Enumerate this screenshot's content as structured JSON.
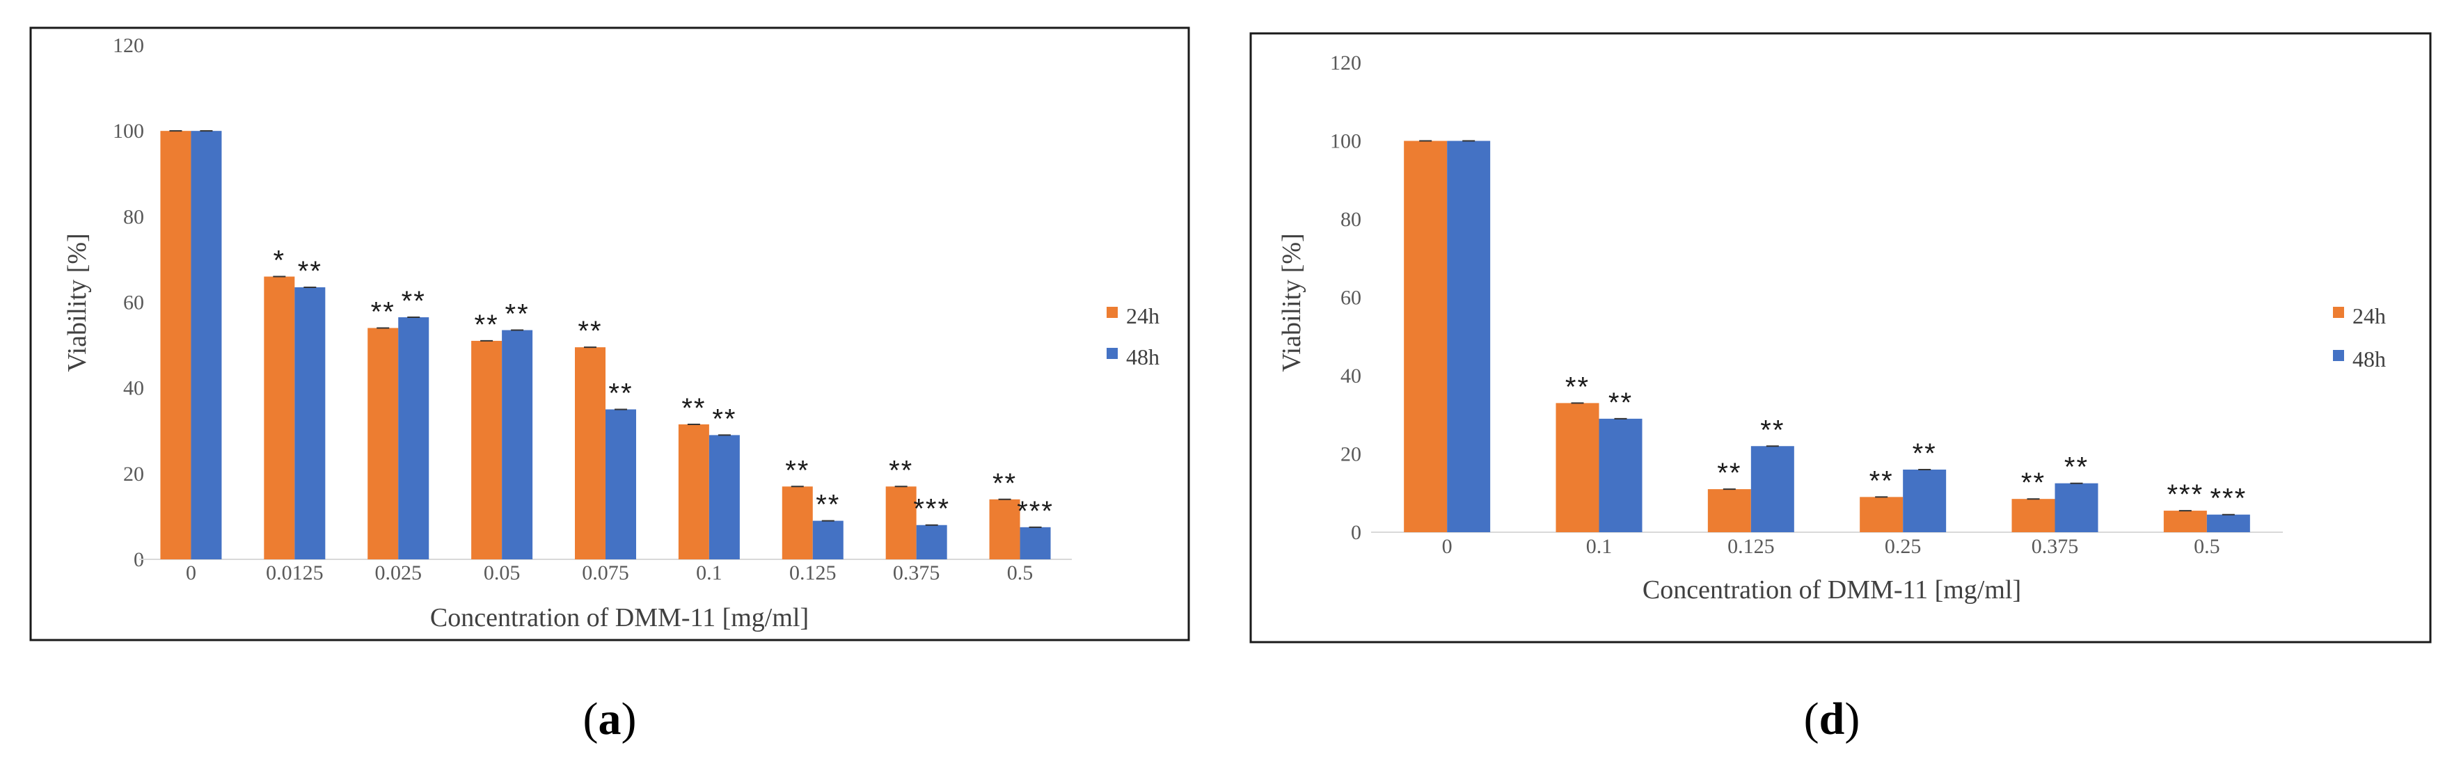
{
  "colors": {
    "series_24h": "#ED7D31",
    "series_48h": "#4472C4"
  },
  "chart_data": [
    {
      "id": "a",
      "type": "bar",
      "panel_label": {
        "open": "(",
        "letter": "a",
        "close": ")"
      },
      "xlabel": "Concentration of DMM-11 [mg/ml]",
      "ylabel": "Viability [%]",
      "ylim": [
        0,
        120
      ],
      "yticks": [
        "0",
        "20",
        "40",
        "60",
        "80",
        "100",
        "120"
      ],
      "categories": [
        "0",
        "0.0125",
        "0.025",
        "0.05",
        "0.075",
        "0.1",
        "0.125",
        "0.375",
        "0.5"
      ],
      "legend_position": "right",
      "series": [
        {
          "name": "24h",
          "values": [
            100,
            66,
            54,
            51,
            49.5,
            31.5,
            17,
            17,
            14
          ],
          "significance": [
            "",
            "*",
            "**",
            "**",
            "**",
            "**",
            "**",
            "**",
            "**"
          ]
        },
        {
          "name": "48h",
          "values": [
            100,
            63.5,
            56.5,
            53.5,
            35,
            29,
            9,
            8,
            7.5
          ],
          "significance": [
            "",
            "**",
            "**",
            "**",
            "**",
            "**",
            "**",
            "***",
            "***"
          ]
        }
      ]
    },
    {
      "id": "d",
      "type": "bar",
      "panel_label": {
        "open": "(",
        "letter": "d",
        "close": ")"
      },
      "xlabel": "Concentration of DMM-11 [mg/ml]",
      "ylabel": "Viability [%]",
      "ylim": [
        0,
        120
      ],
      "yticks": [
        "0",
        "20",
        "40",
        "60",
        "80",
        "100",
        "120"
      ],
      "categories": [
        "0",
        "0.1",
        "0.125",
        "0.25",
        "0.375",
        "0.5"
      ],
      "legend_position": "right",
      "series": [
        {
          "name": "24h",
          "values": [
            100,
            33,
            11,
            9,
            8.5,
            5.5
          ],
          "significance": [
            "",
            "**",
            "**",
            "**",
            "**",
            "***"
          ]
        },
        {
          "name": "48h",
          "values": [
            100,
            29,
            22,
            16,
            12.5,
            4.5
          ],
          "significance": [
            "",
            "**",
            "**",
            "**",
            "**",
            "***"
          ]
        }
      ]
    }
  ]
}
